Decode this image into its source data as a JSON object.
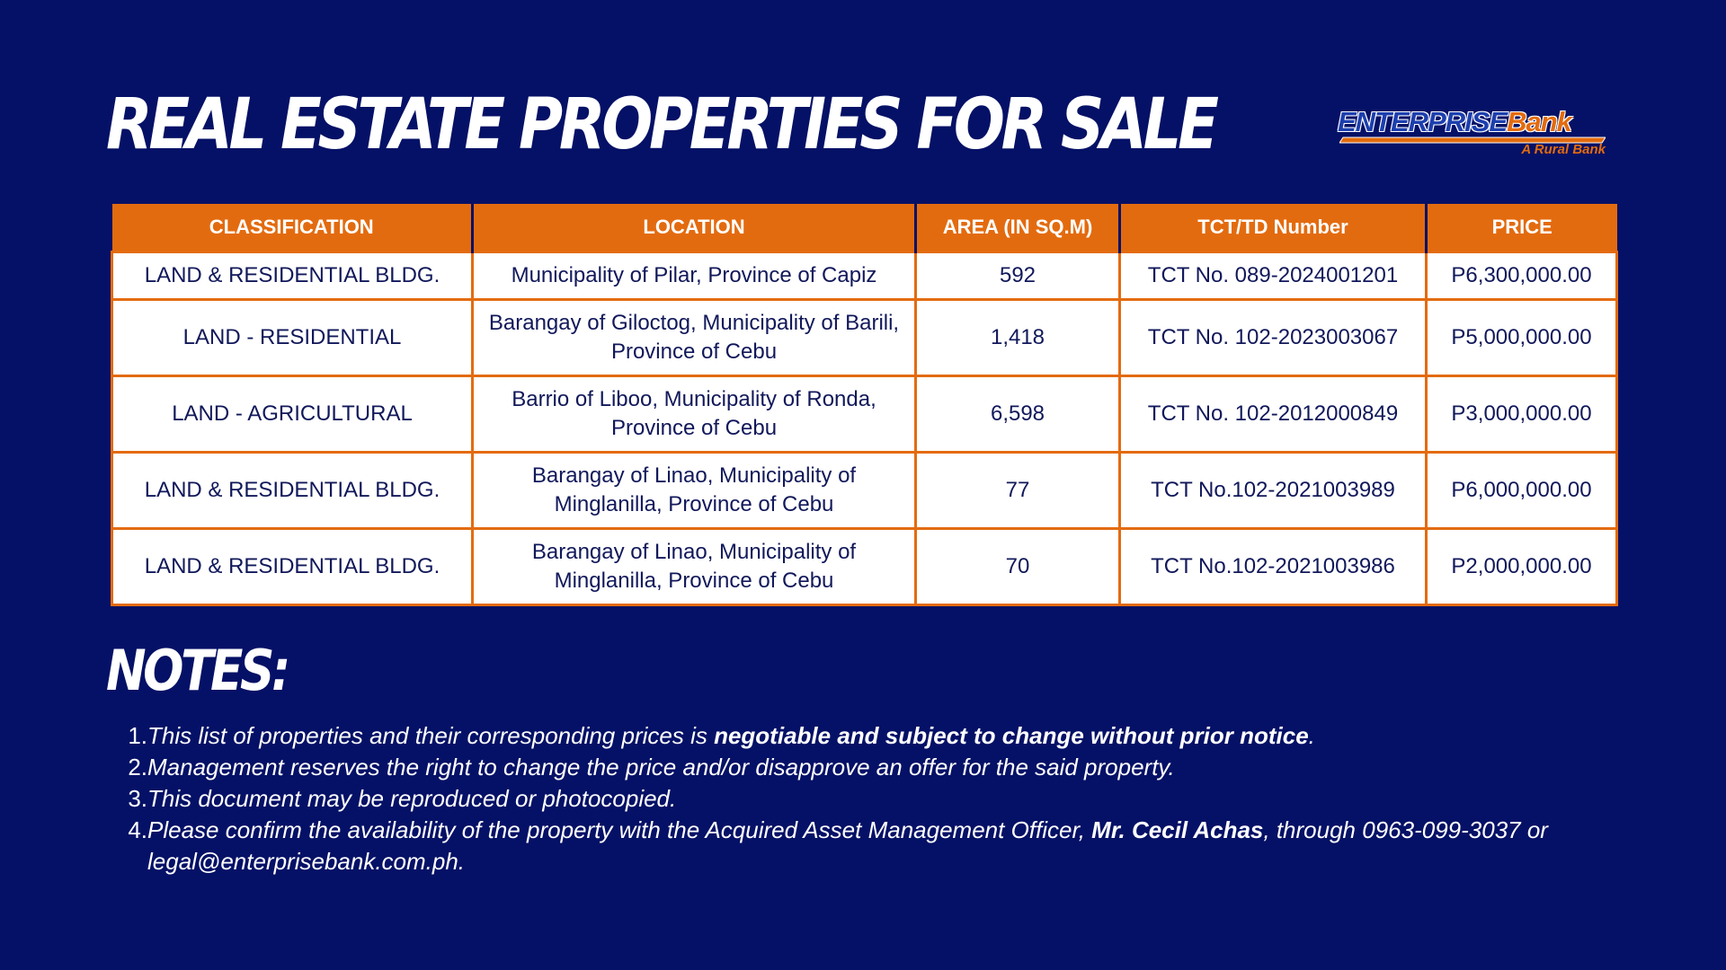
{
  "title": "REAL ESTATE PROPERTIES FOR SALE",
  "logo": {
    "name_part1": "ENTERPRISE",
    "name_part2": "Bank",
    "tagline": "A Rural Bank",
    "colors": {
      "primary": "#1d3fae",
      "accent": "#e36b0f"
    }
  },
  "colors": {
    "background": "#051166",
    "accent_orange": "#e36b0f",
    "table_text": "#11185a"
  },
  "table": {
    "headers": [
      "CLASSIFICATION",
      "LOCATION",
      "AREA (IN SQ.M)",
      "TCT/TD Number",
      "PRICE"
    ],
    "rows": [
      {
        "classification": "LAND & RESIDENTIAL BLDG.",
        "location": "Municipality of Pilar, Province of Capiz",
        "area": "592",
        "tct": "TCT No. 089-2024001201",
        "price": "P6,300,000.00"
      },
      {
        "classification": "LAND - RESIDENTIAL",
        "location": "Barangay of Giloctog, Municipality of Barili, Province of Cebu",
        "area": "1,418",
        "tct": "TCT No. 102-2023003067",
        "price": "P5,000,000.00"
      },
      {
        "classification": "LAND - AGRICULTURAL",
        "location": "Barrio of Liboo, Municipality of Ronda, Province of Cebu",
        "area": "6,598",
        "tct": "TCT No. 102-2012000849",
        "price": "P3,000,000.00"
      },
      {
        "classification": "LAND & RESIDENTIAL BLDG.",
        "location": "Barangay of Linao, Municipality of Minglanilla, Province of Cebu",
        "area": "77",
        "tct": "TCT No.102-2021003989",
        "price": "P6,000,000.00"
      },
      {
        "classification": "LAND & RESIDENTIAL BLDG.",
        "location": "Barangay of Linao, Municipality of Minglanilla, Province of Cebu",
        "area": "70",
        "tct": "TCT No.102-2021003986",
        "price": "P2,000,000.00"
      }
    ]
  },
  "notes": {
    "heading": "NOTES:",
    "items": [
      {
        "num": "1.",
        "text_before": "This list of properties and their corresponding prices is ",
        "bold": "negotiable and subject to change without prior notice",
        "text_after": "."
      },
      {
        "num": "2.",
        "text_before": "Management reserves the right to change the price and/or disapprove an offer for the said property.",
        "bold": "",
        "text_after": ""
      },
      {
        "num": "3.",
        "text_before": "This document may be reproduced or photocopied.",
        "bold": "",
        "text_after": ""
      },
      {
        "num": "4.",
        "text_before": "Please confirm the availability of the property with the Acquired Asset Management Officer, ",
        "bold": "Mr. Cecil Achas",
        "text_after": ", through 0963-099-3037 or legal@enterprisebank.com.ph."
      }
    ]
  }
}
